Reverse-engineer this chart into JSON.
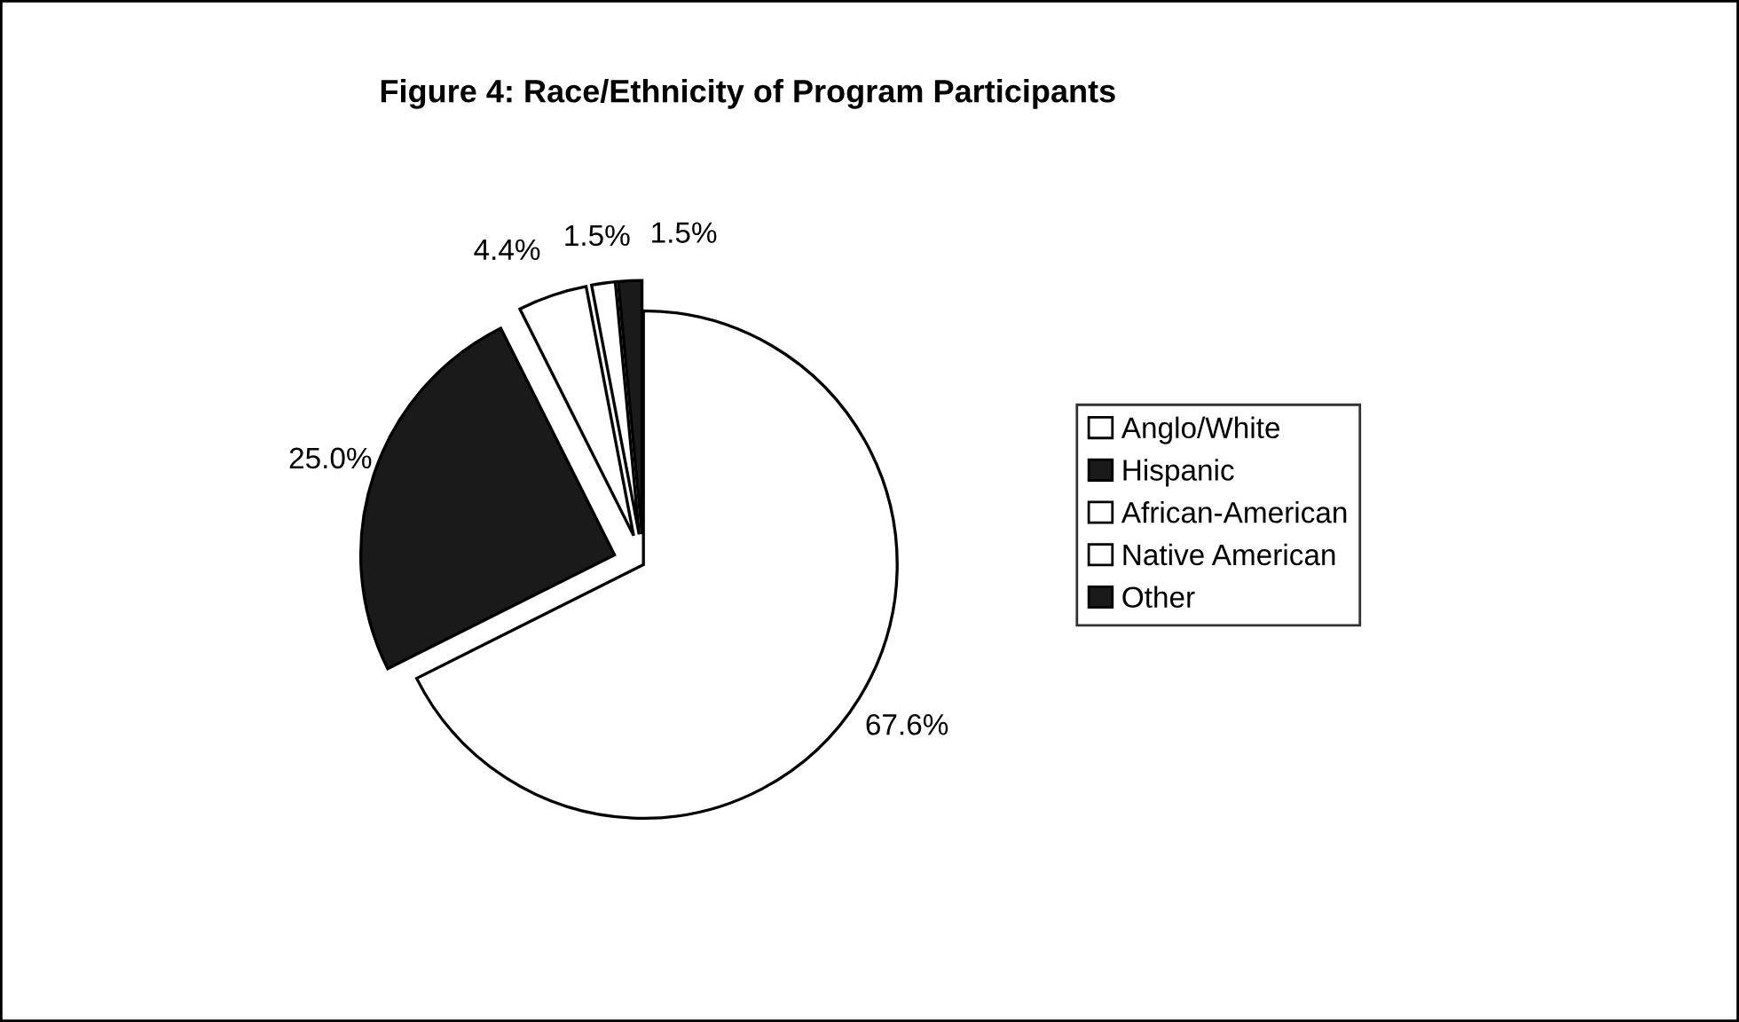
{
  "chart_data": {
    "type": "pie",
    "title": "Figure 4: Race/Ethnicity of Program Participants",
    "categories": [
      "Anglo/White",
      "Hispanic",
      "African-American",
      "Native American",
      "Other"
    ],
    "values": [
      67.6,
      25.0,
      4.4,
      1.5,
      1.5
    ],
    "colors": [
      "#ffffff",
      "#1a1a1a",
      "#ffffff",
      "#ffffff",
      "#1a1a1a"
    ],
    "value_labels": [
      "67.6%",
      "25.0%",
      "4.4%",
      "1.5%",
      "1.5%"
    ],
    "legend": "right"
  }
}
